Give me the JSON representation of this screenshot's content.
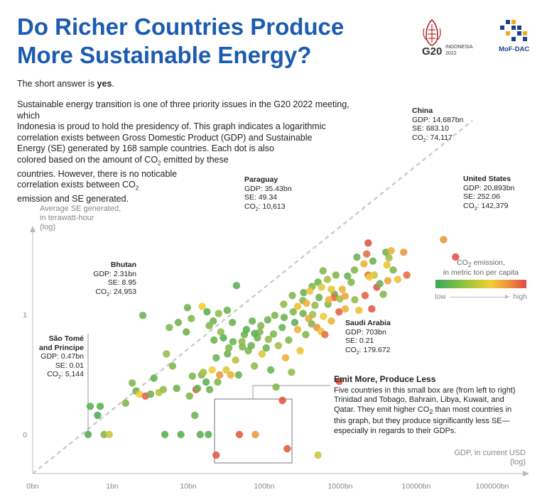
{
  "header": {
    "title": "Do Richer Countries Produce More Sustainable Energy?",
    "answer_prefix": "The short answer is ",
    "answer_bold": "yes",
    "answer_suffix": ".",
    "intro_lines": [
      "Sustainable energy transition is one of three priority issues in the G20 2022 meeting, which",
      "Indonesia is proud to hold the presidency of. This graph indicates a logarithmic",
      "correlation exists between Gross Domestic Product (GDP) and Sustainable",
      "Energy (SE) generated by 168 sample countries. Each dot is also",
      "colored based on the amount of CO2 emitted by these",
      "countries. However, there is no noticable",
      "correlation exists between CO2",
      "emission and SE generated."
    ]
  },
  "logos": {
    "g20_text": "G20",
    "g20_sub1": "INDONESIA",
    "g20_sub2": "2022",
    "mof_text": "MoF-DAC"
  },
  "colors": {
    "title": "#1b5cb0",
    "low": "#3aa860",
    "mid": "#f0cf38",
    "high": "#e2494b",
    "trend": "#cccccc"
  },
  "legend": {
    "title_line1": "CO2 emission,",
    "title_line2": "in metric ton per capita",
    "low": "low",
    "high": "high"
  },
  "annotations": {
    "china": {
      "name": "China",
      "gdp": "GDP: 14,687bn",
      "se": "SE: 683.10",
      "co2": "CO2: 74,117"
    },
    "us": {
      "name": "United States",
      "gdp": "GDP: 20,893bn",
      "se": "SE: 252.06",
      "co2": "CO2: 142,379"
    },
    "paraguay": {
      "name": "Paraguay",
      "gdp": "GDP: 35.43bn",
      "se": "SE: 49.34",
      "co2": "CO2: 10,613"
    },
    "bhutan": {
      "name": "Bhutan",
      "gdp": "GDP: 2.31bn",
      "se": "SE: 8.95",
      "co2": "CO2: 24,953"
    },
    "saudi": {
      "name": "Saudi Arabia",
      "gdp": "GDP: 703bn",
      "se": "SE: 0.21",
      "co2": "CO2: 179.672"
    },
    "saotome": {
      "name1": "São Tomé",
      "name2": "and Principe",
      "gdp": "GDP: 0.47bn",
      "se": "SE: 0.01",
      "co2": "CO2: 5,144"
    }
  },
  "box_note": {
    "title": "Emit More, Produce Less",
    "lines": [
      "Five countries in this small box are (from left to right)",
      "Trinidad and Tobago, Bahrain, Libya, Kuwait, and",
      "Qatar. They emit higher CO2 than most countries in",
      "this graph, but they produce significantly less SE—",
      "especially in regards to their GDPs."
    ]
  },
  "chart_data": {
    "type": "scatter",
    "xlabel_line1": "GDP, in current USD",
    "xlabel_line2": "(log)",
    "ylabel_line1": "Average SE generated,",
    "ylabel_line2": "in terawatt-hour",
    "ylabel_line3": "(log)",
    "x_scale": "log",
    "x_ticks": [
      {
        "value": 0.01,
        "label": "0bn"
      },
      {
        "value": 1,
        "label": "1bn"
      },
      {
        "value": 10,
        "label": "10bn"
      },
      {
        "value": 100,
        "label": "100bn"
      },
      {
        "value": 1000,
        "label": "1000bn"
      },
      {
        "value": 10000,
        "label": "10000bn"
      },
      {
        "value": 100000,
        "label": "100000bn"
      }
    ],
    "y_ticks": [
      {
        "value": 0,
        "label": "0"
      },
      {
        "value": 1,
        "label": "1"
      }
    ],
    "trendline": "dashed-diagonal",
    "points": [
      {
        "gdp": 14687,
        "se": 683.1,
        "co2": 0.7
      },
      {
        "gdp": 20893,
        "se": 252.06,
        "co2": 0.97
      },
      {
        "gdp": 35.43,
        "se": 49.34,
        "co2": 0.1
      },
      {
        "gdp": 2.31,
        "se": 8.95,
        "co2": 0.15
      },
      {
        "gdp": 703,
        "se": 0.21,
        "co2": 0.95
      },
      {
        "gdp": 0.47,
        "se": 0.01,
        "co2": 0.08
      },
      {
        "gdp": 19.6,
        "se": 0.003,
        "co2": 0.93
      },
      {
        "gdp": 38.5,
        "se": 0.01,
        "co2": 0.92
      },
      {
        "gdp": 61.2,
        "se": 0.01,
        "co2": 0.7
      },
      {
        "gdp": 135,
        "se": 0.07,
        "co2": 0.95
      },
      {
        "gdp": 155,
        "se": 0.005,
        "co2": 0.93
      },
      {
        "gdp": 380,
        "se": 0.002,
        "co2": 0.4
      },
      {
        "gdp": 0.5,
        "se": 0.05,
        "co2": 0.1
      },
      {
        "gdp": 0.62,
        "se": 0.03,
        "co2": 0.06
      },
      {
        "gdp": 0.67,
        "se": 0.05,
        "co2": 0.1
      },
      {
        "gdp": 0.75,
        "se": 0.01,
        "co2": 0.2
      },
      {
        "gdp": 0.87,
        "se": 0.01,
        "co2": 0.4
      },
      {
        "gdp": 1.4,
        "se": 0.06,
        "co2": 0.2
      },
      {
        "gdp": 1.7,
        "se": 0.19,
        "co2": 0.2
      },
      {
        "gdp": 1.9,
        "se": 0.12,
        "co2": 0.15
      },
      {
        "gdp": 2.1,
        "se": 0.1,
        "co2": 0.5
      },
      {
        "gdp": 2.5,
        "se": 0.09,
        "co2": 0.9
      },
      {
        "gdp": 2.9,
        "se": 0.1,
        "co2": 0.15
      },
      {
        "gdp": 3.2,
        "se": 0.25,
        "co2": 0.12
      },
      {
        "gdp": 3.7,
        "se": 0.11,
        "co2": 0.35
      },
      {
        "gdp": 4.2,
        "se": 0.13,
        "co2": 0.25
      },
      {
        "gdp": 4.4,
        "se": 0.01,
        "co2": 0.1
      },
      {
        "gdp": 4.6,
        "se": 1,
        "co2": 0.25
      },
      {
        "gdp": 5.5,
        "se": 0.5,
        "co2": 0.2
      },
      {
        "gdp": 6.2,
        "se": 0.14,
        "co2": 0.15
      },
      {
        "gdp": 7.0,
        "se": 0.01,
        "co2": 0.1
      },
      {
        "gdp": 8.2,
        "se": 3.5,
        "co2": 0.15
      },
      {
        "gdp": 9.0,
        "se": 0.09,
        "co2": 0.2
      },
      {
        "gdp": 9.8,
        "se": 0.28,
        "co2": 0.2
      },
      {
        "gdp": 10.5,
        "se": 0.03,
        "co2": 0.15
      },
      {
        "gdp": 10.9,
        "se": 0.13,
        "co2": 0.95
      },
      {
        "gdp": 11.4,
        "se": 0.14,
        "co2": 0.15
      },
      {
        "gdp": 12.3,
        "se": 0.01,
        "co2": 0.1
      },
      {
        "gdp": 12.8,
        "se": 0.3,
        "co2": 0.2
      },
      {
        "gdp": 13.5,
        "se": 0.35,
        "co2": 0.3
      },
      {
        "gdp": 14.6,
        "se": 0.2,
        "co2": 0.1
      },
      {
        "gdp": 15.6,
        "se": 0.01,
        "co2": 0.1
      },
      {
        "gdp": 16.2,
        "se": 0.13,
        "co2": 0.15
      },
      {
        "gdp": 17.4,
        "se": 0.4,
        "co2": 0.5
      },
      {
        "gdp": 18.4,
        "se": 2.2,
        "co2": 0.15
      },
      {
        "gdp": 19.6,
        "se": 0.8,
        "co2": 0.15
      },
      {
        "gdp": 20.5,
        "se": 0.2,
        "co2": 0.2
      },
      {
        "gdp": 21.7,
        "se": 0.3,
        "co2": 0.7
      },
      {
        "gdp": 22.4,
        "se": 3.5,
        "co2": 0.25
      },
      {
        "gdp": 24.2,
        "se": 2.5,
        "co2": 0.1
      },
      {
        "gdp": 26.2,
        "se": 0.4,
        "co2": 0.45
      },
      {
        "gdp": 27.3,
        "se": 1.0,
        "co2": 0.15
      },
      {
        "gdp": 28.3,
        "se": 1.4,
        "co2": 0.2
      },
      {
        "gdp": 29.9,
        "se": 0.3,
        "co2": 0.6
      },
      {
        "gdp": 31.4,
        "se": 6.0,
        "co2": 0.15
      },
      {
        "gdp": 34.5,
        "se": 0.7,
        "co2": 0.35
      },
      {
        "gdp": 37.6,
        "se": 0.3,
        "co2": 0.15
      },
      {
        "gdp": 41.5,
        "se": 2.0,
        "co2": 0.25
      },
      {
        "gdp": 44.5,
        "se": 3.0,
        "co2": 0.15
      },
      {
        "gdp": 47.3,
        "se": 4.0,
        "co2": 0.1
      },
      {
        "gdp": 49.9,
        "se": 1.2,
        "co2": 0.2
      },
      {
        "gdp": 54.4,
        "se": 1.6,
        "co2": 0.15
      },
      {
        "gdp": 59.6,
        "se": 0.5,
        "co2": 0.25
      },
      {
        "gdp": 65.0,
        "se": 2.5,
        "co2": 0.15
      },
      {
        "gdp": 69.8,
        "se": 3.5,
        "co2": 0.2
      },
      {
        "gdp": 74.5,
        "se": 1.0,
        "co2": 0.45
      },
      {
        "gdp": 84.0,
        "se": 1.4,
        "co2": 0.15
      },
      {
        "gdp": 89.6,
        "se": 2.3,
        "co2": 0.25
      },
      {
        "gdp": 96.0,
        "se": 0.4,
        "co2": 0.15
      },
      {
        "gdp": 104,
        "se": 3.1,
        "co2": 0.2
      },
      {
        "gdp": 112,
        "se": 0.15,
        "co2": 0.2
      },
      {
        "gdp": 120,
        "se": 1.6,
        "co2": 0.3
      },
      {
        "gdp": 134,
        "se": 4.5,
        "co2": 0.15
      },
      {
        "gdp": 148,
        "se": 0.8,
        "co2": 0.6
      },
      {
        "gdp": 162,
        "se": 2.2,
        "co2": 0.2
      },
      {
        "gdp": 176,
        "se": 0.35,
        "co2": 0.25
      },
      {
        "gdp": 193,
        "se": 6.0,
        "co2": 0.1
      },
      {
        "gdp": 210,
        "se": 4.0,
        "co2": 0.6
      },
      {
        "gdp": 226,
        "se": 1.2,
        "co2": 0.55
      },
      {
        "gdp": 246,
        "se": 10,
        "co2": 0.15
      },
      {
        "gdp": 266,
        "se": 3.0,
        "co2": 0.2
      },
      {
        "gdp": 290,
        "se": 7.5,
        "co2": 0.65
      },
      {
        "gdp": 316,
        "se": 5.5,
        "co2": 0.2
      },
      {
        "gdp": 348,
        "se": 16,
        "co2": 0.25
      },
      {
        "gdp": 368,
        "se": 4.5,
        "co2": 0.7
      },
      {
        "gdp": 392,
        "se": 25,
        "co2": 0.15
      },
      {
        "gdp": 413,
        "se": 3.6,
        "co2": 0.55
      },
      {
        "gdp": 445,
        "se": 8.5,
        "co2": 0.5
      },
      {
        "gdp": 465,
        "se": 3.0,
        "co2": 0.85
      },
      {
        "gdp": 510,
        "se": 17,
        "co2": 0.2
      },
      {
        "gdp": 560,
        "se": 6.5,
        "co2": 0.6
      },
      {
        "gdp": 615,
        "se": 30,
        "co2": 0.15
      },
      {
        "gdp": 700,
        "se": 11,
        "co2": 0.9
      },
      {
        "gdp": 770,
        "se": 40,
        "co2": 0.6
      },
      {
        "gdp": 840,
        "se": 13,
        "co2": 0.6
      },
      {
        "gdp": 1000,
        "se": 60,
        "co2": 0.2
      },
      {
        "gdp": 1110,
        "se": 22,
        "co2": 0.25
      },
      {
        "gdp": 1250,
        "se": 12,
        "co2": 0.55
      },
      {
        "gdp": 1500,
        "se": 28,
        "co2": 0.9
      },
      {
        "gdp": 1640,
        "se": 90,
        "co2": 0.85
      },
      {
        "gdp": 1820,
        "se": 13,
        "co2": 0.95
      },
      {
        "gdp": 1880,
        "se": 200,
        "co2": 0.15
      },
      {
        "gdp": 1960,
        "se": 90,
        "co2": 0.4
      },
      {
        "gdp": 2110,
        "se": 45,
        "co2": 0.95
      },
      {
        "gdp": 2300,
        "se": 55,
        "co2": 0.15
      },
      {
        "gdp": 2550,
        "se": 30,
        "co2": 0.2
      },
      {
        "gdp": 2900,
        "se": 65,
        "co2": 0.65
      },
      {
        "gdp": 3400,
        "se": 120,
        "co2": 0.2
      },
      {
        "gdp": 3880,
        "se": 70,
        "co2": 0.55
      },
      {
        "gdp": 5050,
        "se": 90,
        "co2": 0.85
      },
      {
        "gdp": 1640,
        "se": 560,
        "co2": 0.95
      },
      {
        "gdp": 2750,
        "se": 330,
        "co2": 0.15
      },
      {
        "gdp": 1570,
        "se": 300,
        "co2": 0.85
      },
      {
        "gdp": 1180,
        "se": 250,
        "co2": 0.15
      },
      {
        "gdp": 3200,
        "se": 360,
        "co2": 0.6
      },
      {
        "gdp": 4600,
        "se": 330,
        "co2": 0.7
      },
      {
        "gdp": 2830,
        "se": 160,
        "co2": 0.55
      },
      {
        "gdp": 1450,
        "se": 170,
        "co2": 0.6
      },
      {
        "gdp": 1100,
        "se": 120,
        "co2": 0.2
      },
      {
        "gdp": 900,
        "se": 85,
        "co2": 0.15
      },
      {
        "gdp": 640,
        "se": 90,
        "co2": 0.2
      },
      {
        "gdp": 500,
        "se": 70,
        "co2": 0.3
      },
      {
        "gdp": 380,
        "se": 60,
        "co2": 0.15
      },
      {
        "gdp": 320,
        "se": 47,
        "co2": 0.2
      },
      {
        "gdp": 420,
        "se": 45,
        "co2": 0.45
      },
      {
        "gdp": 560,
        "se": 40,
        "co2": 0.55
      },
      {
        "gdp": 610,
        "se": 25,
        "co2": 0.85
      },
      {
        "gdp": 715,
        "se": 23,
        "co2": 0.3
      },
      {
        "gdp": 835,
        "se": 27,
        "co2": 0.65
      },
      {
        "gdp": 1700,
        "se": 80,
        "co2": 0.5
      },
      {
        "gdp": 520,
        "se": 22,
        "co2": 0.6
      },
      {
        "gdp": 245,
        "se": 21,
        "co2": 0.2
      },
      {
        "gdp": 210,
        "se": 15,
        "co2": 0.55
      },
      {
        "gdp": 272,
        "se": 18,
        "co2": 0.6
      },
      {
        "gdp": 185,
        "se": 11,
        "co2": 0.2
      },
      {
        "gdp": 142,
        "se": 8.0,
        "co2": 0.15
      },
      {
        "gdp": 108,
        "se": 9.0,
        "co2": 0.2
      },
      {
        "gdp": 88,
        "se": 7.0,
        "co2": 0.15
      },
      {
        "gdp": 72,
        "se": 5.0,
        "co2": 0.2
      },
      {
        "gdp": 60,
        "se": 3.2,
        "co2": 0.1
      },
      {
        "gdp": 27,
        "se": 12,
        "co2": 0.15
      },
      {
        "gdp": 21,
        "se": 10,
        "co2": 0.25
      },
      {
        "gdp": 18,
        "se": 6.5,
        "co2": 0.15
      },
      {
        "gdp": 15,
        "se": 11,
        "co2": 0.1
      },
      {
        "gdp": 13,
        "se": 15,
        "co2": 0.5
      },
      {
        "gdp": 9.5,
        "se": 7.5,
        "co2": 0.2
      },
      {
        "gdp": 8.5,
        "se": 14,
        "co2": 0.15
      },
      {
        "gdp": 16,
        "se": 5.0,
        "co2": 0.2
      },
      {
        "gdp": 6.5,
        "se": 6.0,
        "co2": 0.15
      },
      {
        "gdp": 5.0,
        "se": 4.5,
        "co2": 0.2
      },
      {
        "gdp": 32,
        "se": 2.0,
        "co2": 0.15
      },
      {
        "gdp": 42,
        "se": 1.5,
        "co2": 0.2
      },
      {
        "gdp": 56,
        "se": 6.5,
        "co2": 0.15
      },
      {
        "gdp": 140,
        "se": 17,
        "co2": 0.25
      },
      {
        "gdp": 325,
        "se": 9.5,
        "co2": 0.3
      },
      {
        "gdp": 250,
        "se": 33,
        "co2": 0.15
      },
      {
        "gdp": 180,
        "se": 28,
        "co2": 0.2
      },
      {
        "gdp": 300,
        "se": 36,
        "co2": 0.55
      },
      {
        "gdp": 440,
        "se": 115,
        "co2": 0.2
      },
      {
        "gdp": 3000,
        "se": 240,
        "co2": 0.3
      }
    ]
  }
}
